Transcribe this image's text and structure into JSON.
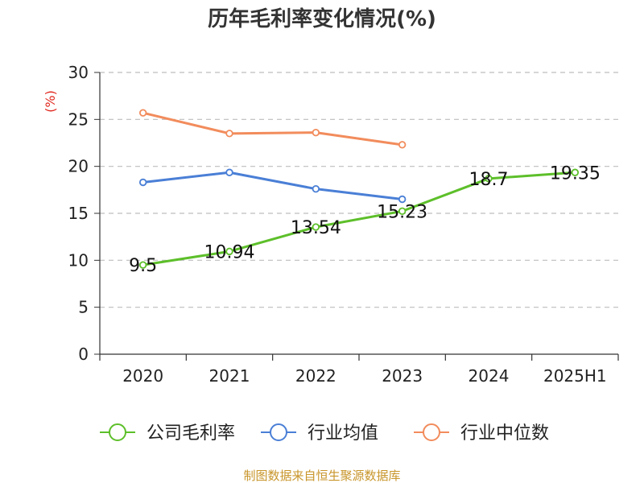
{
  "chart_data": {
    "type": "line",
    "title": "历年毛利率变化情况(%)",
    "unit_label": "(%)",
    "categories": [
      "2020",
      "2021",
      "2022",
      "2023",
      "2024",
      "2025H1"
    ],
    "ylim": [
      0,
      30
    ],
    "yticks": [
      0,
      5,
      10,
      15,
      20,
      25,
      30
    ],
    "grid": true,
    "legend_position": "bottom",
    "series": [
      {
        "name": "公司毛利率",
        "color": "#5dbf2a",
        "values": [
          9.5,
          10.94,
          13.54,
          15.23,
          18.7,
          19.35
        ],
        "show_labels": true,
        "labels": [
          "9.5",
          "10.94",
          "13.54",
          "15.23",
          "18.7",
          "19.35"
        ]
      },
      {
        "name": "行业均值",
        "color": "#4a7fd6",
        "values": [
          18.3,
          19.35,
          17.6,
          16.5,
          null,
          null
        ],
        "show_labels": false
      },
      {
        "name": "行业中位数",
        "color": "#f28c5c",
        "values": [
          25.7,
          23.5,
          23.6,
          22.3,
          null,
          null
        ],
        "show_labels": false
      }
    ]
  },
  "source": "制图数据来自恒生聚源数据库"
}
